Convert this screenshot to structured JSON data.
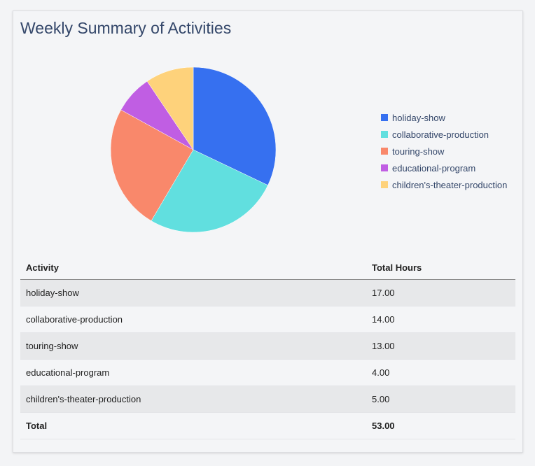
{
  "title": "Weekly Summary of Activities",
  "chart_data": {
    "type": "pie",
    "categories": [
      "holiday-show",
      "collaborative-production",
      "touring-show",
      "educational-program",
      "children's-theater-production"
    ],
    "values": [
      17,
      14,
      13,
      4,
      5
    ],
    "colors": [
      "#3670f0",
      "#61dfdf",
      "#f9886b",
      "#c05ee3",
      "#fed27b"
    ],
    "legend_position": "right"
  },
  "table": {
    "headers": [
      "Activity",
      "Total Hours"
    ],
    "rows": [
      [
        "holiday-show",
        "17.00"
      ],
      [
        "collaborative-production",
        "14.00"
      ],
      [
        "touring-show",
        "13.00"
      ],
      [
        "educational-program",
        "4.00"
      ],
      [
        "children's-theater-production",
        "5.00"
      ]
    ],
    "total": [
      "Total",
      "53.00"
    ]
  }
}
